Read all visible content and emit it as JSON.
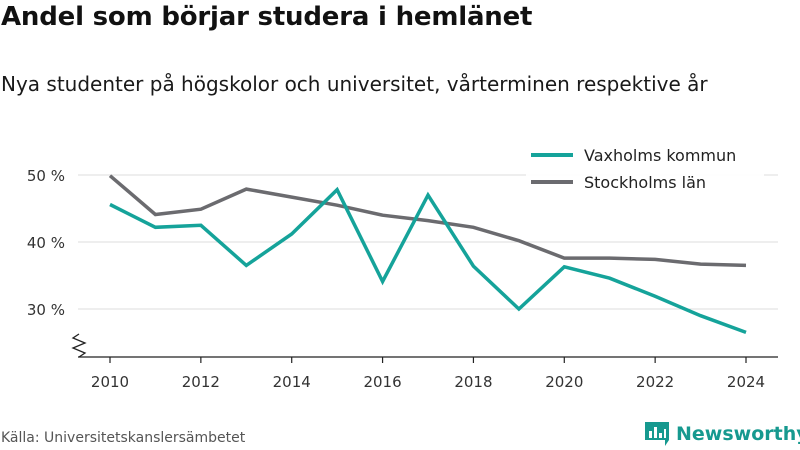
{
  "title": "Andel som börjar studera i hemlänet",
  "subtitle": "Nya studenter på högskolor och universitet, vårterminen respektive år",
  "source": "Källa: Universitetskanslersämbetet",
  "brand": {
    "name": "Newsworthy",
    "icon": "newsworthy-logo-icon",
    "color": "#16998f"
  },
  "chart_data": {
    "type": "line",
    "title": "Andel som börjar studera i hemlänet",
    "subtitle": "Nya studenter på högskolor och universitet, vårterminen respektive år",
    "x": [
      2010,
      2011,
      2012,
      2013,
      2014,
      2015,
      2016,
      2017,
      2018,
      2019,
      2020,
      2021,
      2022,
      2023,
      2024
    ],
    "x_ticks": [
      "2010",
      "2012",
      "2014",
      "2016",
      "2018",
      "2020",
      "2022",
      "2024"
    ],
    "x_tick_values": [
      2010,
      2012,
      2014,
      2016,
      2018,
      2020,
      2022,
      2024
    ],
    "xlim": [
      2009.25,
      2024.65
    ],
    "y_ticks": [
      "30 %",
      "40 %",
      "50 %"
    ],
    "y_tick_values": [
      30,
      40,
      50
    ],
    "ylim": [
      22.5,
      52
    ],
    "y_axis_break": true,
    "grid": true,
    "legend_position": "top-right",
    "series": [
      {
        "name": "Vaxholms kommun",
        "color": "#15a39a",
        "values": [
          45.6,
          42.2,
          42.5,
          36.5,
          41.2,
          47.8,
          34.1,
          47.0,
          36.4,
          30.0,
          36.3,
          34.6,
          31.9,
          29.0,
          26.5
        ]
      },
      {
        "name": "Stockholms län",
        "color": "#6b6b6f",
        "values": [
          49.9,
          44.1,
          44.9,
          47.9,
          46.7,
          45.5,
          44.0,
          43.2,
          42.2,
          40.2,
          37.6,
          37.6,
          37.4,
          36.7,
          36.5
        ]
      }
    ]
  }
}
